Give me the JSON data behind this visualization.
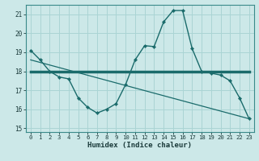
{
  "title": "",
  "xlabel": "Humidex (Indice chaleur)",
  "xlim": [
    -0.5,
    23.5
  ],
  "ylim": [
    14.8,
    21.5
  ],
  "yticks": [
    15,
    16,
    17,
    18,
    19,
    20,
    21
  ],
  "xticks": [
    0,
    1,
    2,
    3,
    4,
    5,
    6,
    7,
    8,
    9,
    10,
    11,
    12,
    13,
    14,
    15,
    16,
    17,
    18,
    19,
    20,
    21,
    22,
    23
  ],
  "bg_color": "#cce8e8",
  "grid_color": "#aad4d4",
  "line_color": "#1a6b6b",
  "line1_x": [
    0,
    1,
    2,
    3,
    4,
    5,
    6,
    7,
    8,
    9,
    10,
    11,
    12,
    13,
    14,
    15,
    16,
    17,
    18,
    19,
    20,
    21,
    22,
    23
  ],
  "line1_y": [
    19.1,
    18.6,
    18.0,
    17.7,
    17.6,
    16.6,
    16.1,
    15.8,
    16.0,
    16.3,
    17.3,
    18.6,
    19.35,
    19.3,
    20.6,
    21.2,
    21.2,
    19.2,
    18.0,
    17.9,
    17.8,
    17.5,
    16.6,
    15.5
  ],
  "line2_x": [
    0,
    23
  ],
  "line2_y": [
    18.0,
    18.0
  ],
  "line3_x": [
    0,
    23
  ],
  "line3_y": [
    18.6,
    15.5
  ]
}
